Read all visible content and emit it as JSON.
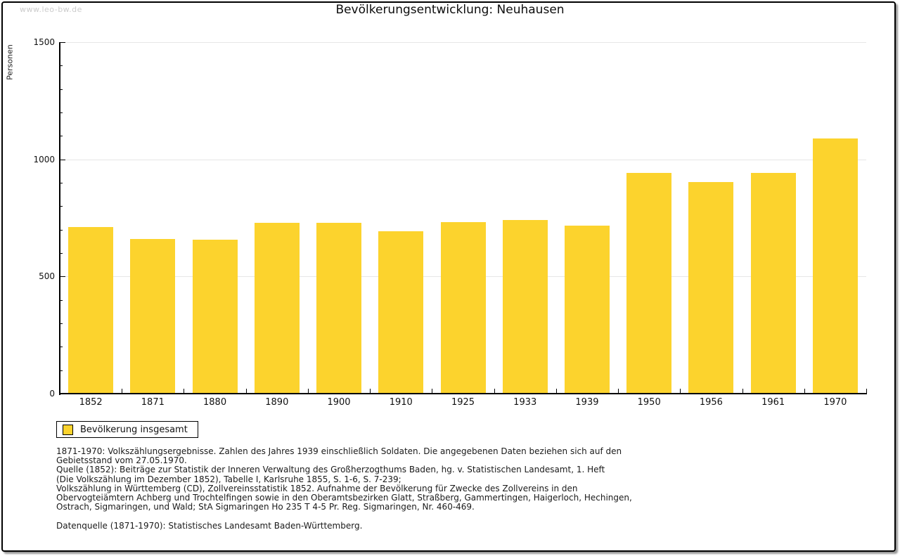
{
  "watermark": "www.leo-bw.de",
  "title": "Bevölkerungsentwicklung: Neuhausen",
  "chart_data": {
    "type": "bar",
    "title": "Bevölkerungsentwicklung: Neuhausen",
    "xlabel": "",
    "ylabel": "Personen",
    "categories": [
      "1852",
      "1871",
      "1880",
      "1890",
      "1900",
      "1910",
      "1925",
      "1933",
      "1939",
      "1950",
      "1956",
      "1961",
      "1970"
    ],
    "values": [
      710,
      660,
      656,
      730,
      730,
      692,
      733,
      740,
      717,
      943,
      904,
      941,
      1090
    ],
    "ylim": [
      0,
      1500
    ],
    "yticks": [
      0,
      500,
      1000,
      1500
    ],
    "minor_tick_step": 100,
    "grid": true,
    "bar_color": "#FCD32D",
    "legend": [
      {
        "label": "Bevölkerung insgesamt",
        "color": "#FCD32D"
      }
    ],
    "legend_position": "bottom-left"
  },
  "colors": {
    "bar": "#FCD32D",
    "gridline": "#e6e6e6",
    "axis": "#000000",
    "watermark": "#cccccc"
  },
  "notes": {
    "lines": [
      "1871-1970: Volkszählungsergebnisse. Zahlen des Jahres 1939 einschließlich Soldaten. Die angegebenen Daten beziehen sich auf den",
      "Gebietsstand vom 27.05.1970.",
      "Quelle (1852): Beiträge zur Statistik der Inneren Verwaltung des Großherzogthums Baden, hg. v. Statistischen Landesamt, 1. Heft",
      "(Die Volkszählung im Dezember 1852), Tabelle I, Karlsruhe 1855, S. 1-6, S. 7-239;",
      "Volkszählung in Württemberg (CD), Zollvereinsstatistik 1852. Aufnahme der Bevölkerung für Zwecke des Zollvereins in den",
      "Obervogteiämtern Achberg und Trochtelfingen sowie in den Oberamtsbezirken Glatt, Straßberg, Gammertingen, Haigerloch, Hechingen,",
      "Ostrach, Sigmaringen, und Wald; StA Sigmaringen Ho 235 T 4-5 Pr. Reg. Sigmaringen, Nr. 460-469."
    ],
    "source_line": "Datenquelle (1871-1970): Statistisches Landesamt Baden-Württemberg."
  }
}
